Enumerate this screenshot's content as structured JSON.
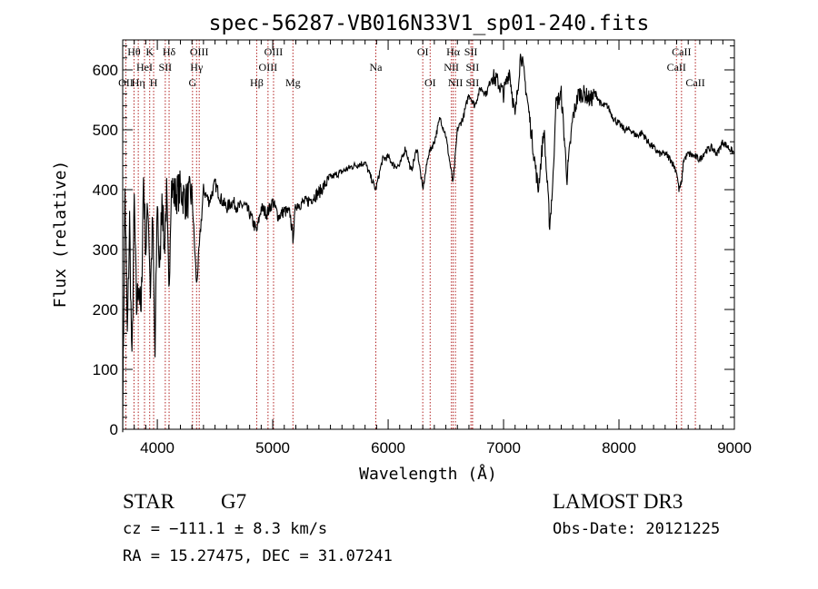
{
  "chart_data": {
    "type": "line",
    "title": "spec-56287-VB016N33V1_sp01-240.fits",
    "xlabel": "Wavelength (Å)",
    "ylabel": "Flux (relative)",
    "xlim": [
      3700,
      9000
    ],
    "ylim": [
      0,
      650
    ],
    "xticks": [
      4000,
      5000,
      6000,
      7000,
      8000,
      9000
    ],
    "yticks": [
      0,
      100,
      200,
      300,
      400,
      500,
      600
    ],
    "grid": false,
    "line_color": "#000000",
    "marker_color": "#b22222",
    "spectrum": {
      "x": [
        3700,
        3720,
        3740,
        3760,
        3780,
        3800,
        3820,
        3840,
        3860,
        3880,
        3900,
        3920,
        3940,
        3960,
        3980,
        4000,
        4020,
        4040,
        4060,
        4080,
        4100,
        4120,
        4150,
        4200,
        4250,
        4300,
        4340,
        4400,
        4450,
        4500,
        4550,
        4600,
        4650,
        4700,
        4750,
        4800,
        4861,
        4900,
        4950,
        5000,
        5050,
        5100,
        5150,
        5175,
        5200,
        5300,
        5400,
        5500,
        5600,
        5700,
        5800,
        5893,
        5950,
        6000,
        6050,
        6100,
        6150,
        6200,
        6250,
        6300,
        6350,
        6400,
        6450,
        6500,
        6563,
        6600,
        6650,
        6700,
        6750,
        6800,
        6850,
        6900,
        6950,
        7000,
        7050,
        7100,
        7150,
        7200,
        7250,
        7300,
        7350,
        7400,
        7430,
        7450,
        7500,
        7550,
        7600,
        7650,
        7700,
        7750,
        7800,
        7850,
        7900,
        7950,
        8000,
        8050,
        8100,
        8150,
        8200,
        8250,
        8300,
        8350,
        8400,
        8450,
        8500,
        8520,
        8542,
        8560,
        8600,
        8662,
        8700,
        8750,
        8800,
        8850,
        8900,
        8950,
        9000
      ],
      "y": [
        20,
        400,
        150,
        350,
        100,
        380,
        200,
        250,
        180,
        420,
        300,
        380,
        230,
        350,
        120,
        390,
        250,
        400,
        300,
        390,
        220,
        410,
        390,
        400,
        380,
        395,
        240,
        400,
        380,
        410,
        385,
        370,
        380,
        370,
        375,
        360,
        330,
        370,
        360,
        380,
        355,
        365,
        360,
        320,
        375,
        380,
        395,
        420,
        430,
        440,
        445,
        400,
        450,
        455,
        440,
        440,
        470,
        430,
        470,
        400,
        460,
        480,
        520,
        490,
        410,
        500,
        520,
        560,
        540,
        570,
        560,
        590,
        580,
        560,
        600,
        520,
        630,
        560,
        480,
        400,
        500,
        340,
        420,
        540,
        560,
        420,
        520,
        560,
        560,
        550,
        560,
        540,
        540,
        520,
        510,
        500,
        500,
        490,
        495,
        480,
        470,
        460,
        460,
        450,
        430,
        400,
        410,
        450,
        460,
        455,
        450,
        465,
        470,
        460,
        480,
        470,
        460
      ]
    },
    "lines": [
      {
        "label": "Hθ",
        "x": 3798,
        "row": 0
      },
      {
        "label": "K",
        "x": 3934,
        "row": 0
      },
      {
        "label": "Hδ",
        "x": 4102,
        "row": 0
      },
      {
        "label": "OIII",
        "x": 4363,
        "row": 0
      },
      {
        "label": "OIII",
        "x": 5007,
        "row": 0
      },
      {
        "label": "OI",
        "x": 6300,
        "row": 0
      },
      {
        "label": "Hα",
        "x": 6563,
        "row": 0
      },
      {
        "label": "SII",
        "x": 6717,
        "row": 0
      },
      {
        "label": "CaII",
        "x": 8542,
        "row": 0
      },
      {
        "label": "OII",
        "x": 3727,
        "row": 2
      },
      {
        "label": "HeI",
        "x": 3889,
        "row": 1
      },
      {
        "label": "Hη",
        "x": 3835,
        "row": 2
      },
      {
        "label": "SII",
        "x": 4069,
        "row": 1
      },
      {
        "label": "H",
        "x": 3968,
        "row": 2
      },
      {
        "label": "Hγ",
        "x": 4340,
        "row": 1
      },
      {
        "label": "G",
        "x": 4305,
        "row": 2
      },
      {
        "label": "OIII",
        "x": 4959,
        "row": 1
      },
      {
        "label": "Hβ",
        "x": 4861,
        "row": 2
      },
      {
        "label": "Mg",
        "x": 5175,
        "row": 2
      },
      {
        "label": "Na",
        "x": 5893,
        "row": 1
      },
      {
        "label": "OI",
        "x": 6364,
        "row": 2
      },
      {
        "label": "NII",
        "x": 6548,
        "row": 1
      },
      {
        "label": "NII",
        "x": 6583,
        "row": 2
      },
      {
        "label": "SII",
        "x": 6731,
        "row": 1
      },
      {
        "label": "SII",
        "x": 6731,
        "row": 2
      },
      {
        "label": "CaII",
        "x": 8498,
        "row": 1
      },
      {
        "label": "CaII",
        "x": 8662,
        "row": 2
      }
    ]
  },
  "info": {
    "class": "STAR",
    "subclass": "G7",
    "survey": "LAMOST DR3",
    "cz": "cz = −111.1 ± 8.3 km/s",
    "obs_date": "Obs-Date: 20121225",
    "coords": "RA =  15.27475, DEC =  31.07241"
  }
}
